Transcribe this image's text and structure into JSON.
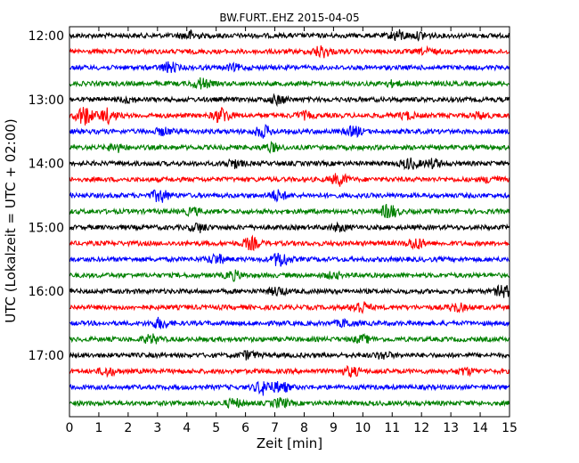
{
  "chart_data": {
    "type": "line",
    "title": "BW.FURT..EHZ 2015-04-05",
    "xlabel": "Zeit  [min]",
    "ylabel": "UTC (Lokalzeit = UTC + 02:00)",
    "xlim": [
      0,
      15
    ],
    "x_ticks": [
      "0",
      "1",
      "2",
      "3",
      "4",
      "5",
      "6",
      "7",
      "8",
      "9",
      "10",
      "11",
      "12",
      "13",
      "14",
      "15"
    ],
    "y_ticks": [
      "12:00",
      "13:00",
      "14:00",
      "15:00",
      "16:00",
      "17:00"
    ],
    "trace_colors": [
      "#000000",
      "#ff0000",
      "#0000ff",
      "#008000"
    ],
    "traces": [
      {
        "start": "12:00",
        "events": [
          [
            4.1,
            1.4
          ],
          [
            11.2,
            1.6
          ],
          [
            12.0,
            1.0
          ]
        ]
      },
      {
        "start": "12:15",
        "events": [
          [
            8.6,
            1.8
          ],
          [
            12.2,
            0.8
          ]
        ]
      },
      {
        "start": "12:30",
        "events": [
          [
            3.4,
            1.6
          ],
          [
            5.6,
            0.8
          ]
        ]
      },
      {
        "start": "12:45",
        "events": [
          [
            4.5,
            1.6
          ],
          [
            11.0,
            0.7
          ]
        ]
      },
      {
        "start": "13:00",
        "events": [
          [
            7.1,
            1.3
          ],
          [
            2.0,
            0.8
          ]
        ]
      },
      {
        "start": "13:15",
        "events": [
          [
            0.5,
            3.0
          ],
          [
            1.3,
            2.2
          ],
          [
            5.2,
            2.4
          ],
          [
            8.0,
            1.0
          ],
          [
            11.5,
            1.0
          ],
          [
            14.0,
            0.9
          ]
        ]
      },
      {
        "start": "13:30",
        "events": [
          [
            3.2,
            1.0
          ],
          [
            6.6,
            1.8
          ],
          [
            9.7,
            1.4
          ]
        ]
      },
      {
        "start": "13:45",
        "events": [
          [
            1.6,
            1.2
          ],
          [
            6.9,
            1.2
          ]
        ]
      },
      {
        "start": "14:00",
        "events": [
          [
            5.6,
            1.2
          ],
          [
            11.6,
            1.6
          ],
          [
            12.4,
            1.3
          ]
        ]
      },
      {
        "start": "14:15",
        "events": [
          [
            9.2,
            1.8
          ],
          [
            14.4,
            1.0
          ]
        ]
      },
      {
        "start": "14:30",
        "events": [
          [
            3.1,
            2.0
          ],
          [
            7.1,
            1.6
          ]
        ]
      },
      {
        "start": "14:45",
        "events": [
          [
            10.9,
            2.2
          ],
          [
            4.2,
            1.0
          ]
        ]
      },
      {
        "start": "15:00",
        "events": [
          [
            4.4,
            1.3
          ],
          [
            9.2,
            1.0
          ]
        ]
      },
      {
        "start": "15:15",
        "events": [
          [
            6.2,
            1.8
          ],
          [
            11.8,
            1.8
          ]
        ]
      },
      {
        "start": "15:30",
        "events": [
          [
            5.0,
            1.5
          ],
          [
            7.2,
            2.4
          ]
        ]
      },
      {
        "start": "15:45",
        "events": [
          [
            5.6,
            1.3
          ],
          [
            9.0,
            0.8
          ]
        ]
      },
      {
        "start": "16:00",
        "events": [
          [
            7.1,
            1.2
          ],
          [
            14.8,
            1.8
          ]
        ]
      },
      {
        "start": "16:15",
        "events": [
          [
            9.9,
            2.0
          ],
          [
            13.2,
            1.2
          ]
        ]
      },
      {
        "start": "16:30",
        "events": [
          [
            3.1,
            1.6
          ],
          [
            9.4,
            1.0
          ]
        ]
      },
      {
        "start": "16:45",
        "events": [
          [
            2.8,
            1.3
          ],
          [
            10.0,
            1.0
          ]
        ]
      },
      {
        "start": "17:00",
        "events": [
          [
            6.1,
            1.2
          ],
          [
            10.7,
            1.0
          ]
        ]
      },
      {
        "start": "17:15",
        "events": [
          [
            1.3,
            1.2
          ],
          [
            9.6,
            1.4
          ],
          [
            13.5,
            1.0
          ]
        ]
      },
      {
        "start": "17:30",
        "events": [
          [
            6.6,
            2.2
          ],
          [
            7.2,
            1.6
          ]
        ]
      },
      {
        "start": "17:45",
        "events": [
          [
            5.6,
            1.3
          ],
          [
            7.2,
            1.4
          ]
        ]
      }
    ]
  }
}
